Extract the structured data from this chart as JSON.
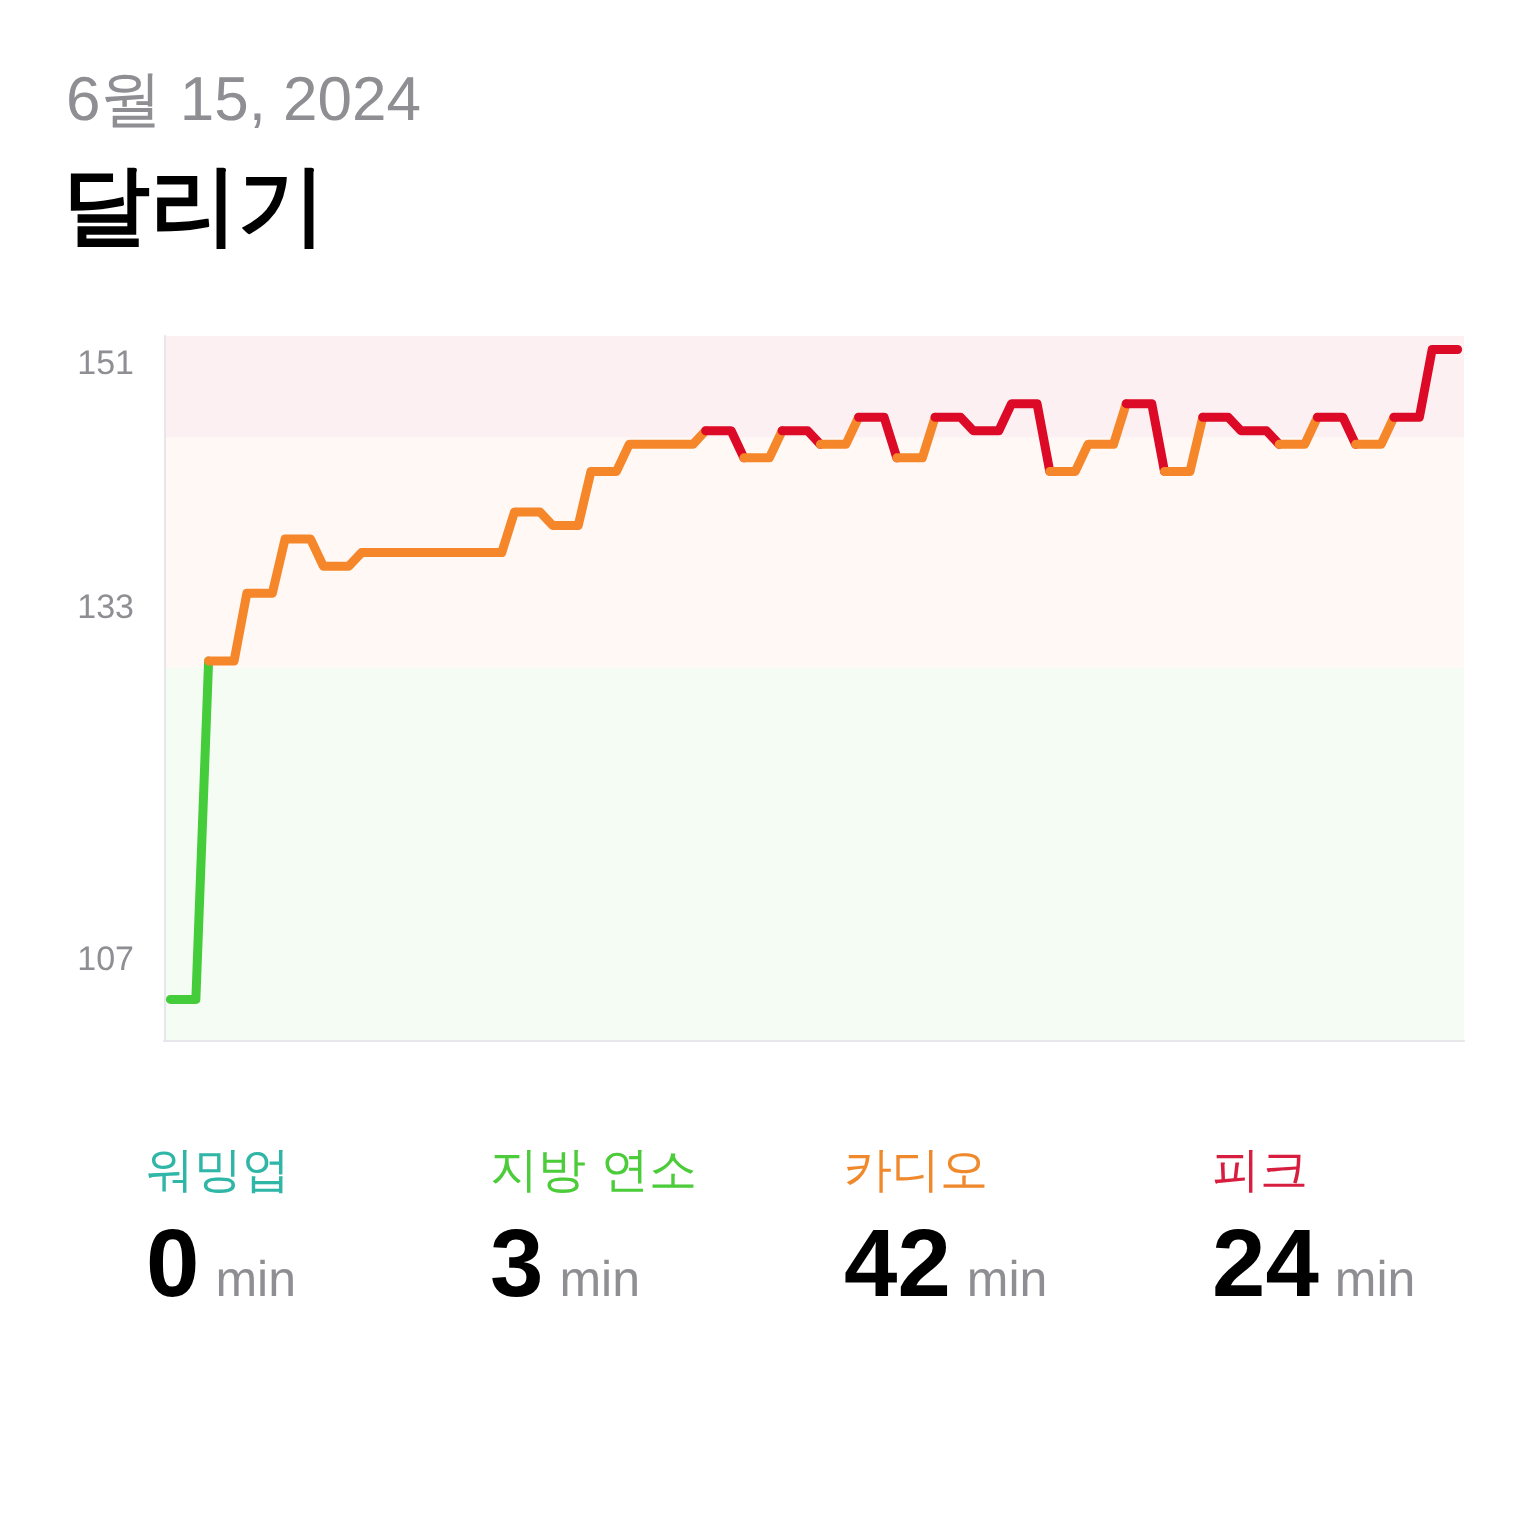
{
  "chart_data": [
    {
      "type": "line",
      "title": "달리기",
      "subtitle": "6월 15, 2024",
      "categories": [
        null,
        null,
        null,
        null,
        null,
        null,
        null,
        null,
        null,
        null,
        null,
        null,
        null,
        null,
        null,
        null,
        null,
        null,
        null,
        null,
        null,
        null,
        null,
        null,
        null,
        null,
        null,
        null,
        null,
        null,
        null,
        null,
        null,
        null,
        null,
        null,
        null,
        null,
        null,
        null,
        null,
        null,
        null,
        null,
        null,
        null,
        null,
        null,
        null,
        null,
        null,
        null,
        null,
        null,
        null,
        null,
        null,
        null,
        null,
        null,
        null,
        null,
        null,
        null,
        null,
        null,
        null,
        null,
        null,
        null,
        null,
        null,
        null,
        null,
        null,
        null,
        null,
        null,
        null,
        null,
        null,
        null,
        null,
        null,
        null,
        null,
        null,
        null,
        null,
        null,
        null,
        null,
        null,
        null,
        null,
        null,
        null,
        null,
        null,
        null,
        null,
        null
      ],
      "series": [
        {
          "color": "#45cc3a",
          "values": [
            104,
            104,
            104,
            129,
            null,
            null,
            null,
            null,
            null,
            null,
            null,
            null,
            null,
            null,
            null,
            null,
            null,
            null,
            null,
            null,
            null,
            null,
            null,
            null,
            null,
            null,
            null,
            null,
            null,
            null,
            null,
            null,
            null,
            null,
            null,
            null,
            null,
            null,
            null,
            null,
            null,
            null,
            null,
            null,
            null,
            null,
            null,
            null,
            null,
            null,
            null,
            null,
            null,
            null,
            null,
            null,
            null,
            null,
            null,
            null,
            null,
            null,
            null,
            null,
            null,
            null,
            null,
            null,
            null,
            null,
            null,
            null,
            null,
            null,
            null,
            null,
            null,
            null,
            null,
            null,
            null,
            null,
            null,
            null,
            null,
            null,
            null,
            null,
            null,
            null,
            null,
            null,
            null,
            null,
            null,
            null,
            null,
            null,
            null,
            null,
            null,
            null
          ]
        },
        {
          "color": "#f5862a",
          "values": [
            null,
            null,
            null,
            129,
            129,
            129,
            134,
            134,
            134,
            138,
            138,
            138,
            136,
            136,
            136,
            137,
            137,
            137,
            137,
            137,
            137,
            137,
            137,
            137,
            137,
            137,
            137,
            140,
            140,
            140,
            139,
            139,
            139,
            143,
            143,
            143,
            145,
            145,
            145,
            145,
            145,
            145,
            146,
            null,
            null,
            null,
            null,
            null,
            null,
            null,
            null,
            null,
            null,
            null,
            null,
            null,
            null,
            null,
            null,
            null,
            null,
            null,
            null,
            null,
            null,
            null,
            null,
            null,
            null,
            null,
            null,
            null,
            null,
            null,
            null,
            null,
            null,
            null,
            null,
            null,
            null,
            null,
            null,
            null,
            null,
            null,
            null,
            null,
            null,
            null,
            null,
            null,
            null,
            null,
            null,
            null,
            null,
            null,
            null,
            null,
            null,
            null
          ]
        },
        {
          "color": "#dc0a26",
          "values": [
            null,
            null,
            null,
            null,
            null,
            null,
            null,
            null,
            null,
            null,
            null,
            null,
            null,
            null,
            null,
            null,
            null,
            null,
            null,
            null,
            null,
            null,
            null,
            null,
            null,
            null,
            null,
            null,
            null,
            null,
            null,
            null,
            null,
            null,
            null,
            null,
            null,
            null,
            null,
            null,
            null,
            null,
            146,
            146,
            146,
            144,
            null,
            null,
            null,
            null,
            null,
            null,
            null,
            null,
            null,
            null,
            null,
            null,
            null,
            null,
            null,
            null,
            null,
            null,
            null,
            null,
            null,
            null,
            null,
            null,
            null,
            null,
            null,
            null,
            null,
            null,
            null,
            null,
            null,
            null,
            null,
            null,
            null,
            null,
            null,
            null,
            null,
            null,
            null,
            null,
            null,
            null,
            null,
            null,
            null,
            null,
            null,
            null,
            null,
            null,
            null,
            null
          ]
        },
        {
          "color": "#f5862a",
          "values": [
            null,
            null,
            null,
            null,
            null,
            null,
            null,
            null,
            null,
            null,
            null,
            null,
            null,
            null,
            null,
            null,
            null,
            null,
            null,
            null,
            null,
            null,
            null,
            null,
            null,
            null,
            null,
            null,
            null,
            null,
            null,
            null,
            null,
            null,
            null,
            null,
            null,
            null,
            null,
            null,
            null,
            null,
            null,
            null,
            null,
            144,
            144,
            144,
            146,
            null,
            null,
            null,
            null,
            null,
            null,
            null,
            null,
            null,
            null,
            null,
            null,
            null,
            null,
            null,
            null,
            null,
            null,
            null,
            null,
            null,
            null,
            null,
            null,
            null,
            null,
            null,
            null,
            null,
            null,
            null,
            null,
            null,
            null,
            null,
            null,
            null,
            null,
            null,
            null,
            null,
            null,
            null,
            null,
            null,
            null,
            null,
            null,
            null,
            null,
            null,
            null,
            null
          ]
        },
        {
          "color": "#dc0a26",
          "values": [
            null,
            null,
            null,
            null,
            null,
            null,
            null,
            null,
            null,
            null,
            null,
            null,
            null,
            null,
            null,
            null,
            null,
            null,
            null,
            null,
            null,
            null,
            null,
            null,
            null,
            null,
            null,
            null,
            null,
            null,
            null,
            null,
            null,
            null,
            null,
            null,
            null,
            null,
            null,
            null,
            null,
            null,
            null,
            null,
            null,
            null,
            null,
            null,
            146,
            146,
            146,
            145,
            null,
            null,
            null,
            null,
            null,
            null,
            null,
            null,
            null,
            null,
            null,
            null,
            null,
            null,
            null,
            null,
            null,
            null,
            null,
            null,
            null,
            null,
            null,
            null,
            null,
            null,
            null,
            null,
            null,
            null,
            null,
            null,
            null,
            null,
            null,
            null,
            null,
            null,
            null,
            null,
            null,
            null,
            null,
            null,
            null,
            null,
            null,
            null,
            null,
            null
          ]
        },
        {
          "color": "#f5862a",
          "values": [
            null,
            null,
            null,
            null,
            null,
            null,
            null,
            null,
            null,
            null,
            null,
            null,
            null,
            null,
            null,
            null,
            null,
            null,
            null,
            null,
            null,
            null,
            null,
            null,
            null,
            null,
            null,
            null,
            null,
            null,
            null,
            null,
            null,
            null,
            null,
            null,
            null,
            null,
            null,
            null,
            null,
            null,
            null,
            null,
            null,
            null,
            null,
            null,
            null,
            null,
            null,
            145,
            145,
            145,
            147,
            null,
            null,
            null,
            null,
            null,
            null,
            null,
            null,
            null,
            null,
            null,
            null,
            null,
            null,
            null,
            null,
            null,
            null,
            null,
            null,
            null,
            null,
            null,
            null,
            null,
            null,
            null,
            null,
            null,
            null,
            null,
            null,
            null,
            null,
            null,
            null,
            null,
            null,
            null,
            null,
            null,
            null,
            null,
            null,
            null,
            null,
            null
          ]
        },
        {
          "color": "#dc0a26",
          "values": [
            null,
            null,
            null,
            null,
            null,
            null,
            null,
            null,
            null,
            null,
            null,
            null,
            null,
            null,
            null,
            null,
            null,
            null,
            null,
            null,
            null,
            null,
            null,
            null,
            null,
            null,
            null,
            null,
            null,
            null,
            null,
            null,
            null,
            null,
            null,
            null,
            null,
            null,
            null,
            null,
            null,
            null,
            null,
            null,
            null,
            null,
            null,
            null,
            null,
            null,
            null,
            null,
            null,
            null,
            147,
            147,
            147,
            144,
            null,
            null,
            null,
            null,
            null,
            null,
            null,
            null,
            null,
            null,
            null,
            null,
            null,
            null,
            null,
            null,
            null,
            null,
            null,
            null,
            null,
            null,
            null,
            null,
            null,
            null,
            null,
            null,
            null,
            null,
            null,
            null,
            null,
            null,
            null,
            null,
            null,
            null,
            null,
            null,
            null,
            null,
            null,
            null
          ]
        },
        {
          "color": "#f5862a",
          "values": [
            null,
            null,
            null,
            null,
            null,
            null,
            null,
            null,
            null,
            null,
            null,
            null,
            null,
            null,
            null,
            null,
            null,
            null,
            null,
            null,
            null,
            null,
            null,
            null,
            null,
            null,
            null,
            null,
            null,
            null,
            null,
            null,
            null,
            null,
            null,
            null,
            null,
            null,
            null,
            null,
            null,
            null,
            null,
            null,
            null,
            null,
            null,
            null,
            null,
            null,
            null,
            null,
            null,
            null,
            null,
            null,
            null,
            144,
            144,
            144,
            147,
            null,
            null,
            null,
            null,
            null,
            null,
            null,
            null,
            null,
            null,
            null,
            null,
            null,
            null,
            null,
            null,
            null,
            null,
            null,
            null,
            null,
            null,
            null,
            null,
            null,
            null,
            null,
            null,
            null,
            null,
            null,
            null,
            null,
            null,
            null,
            null,
            null,
            null,
            null,
            null,
            null
          ]
        },
        {
          "color": "#dc0a26",
          "values": [
            null,
            null,
            null,
            null,
            null,
            null,
            null,
            null,
            null,
            null,
            null,
            null,
            null,
            null,
            null,
            null,
            null,
            null,
            null,
            null,
            null,
            null,
            null,
            null,
            null,
            null,
            null,
            null,
            null,
            null,
            null,
            null,
            null,
            null,
            null,
            null,
            null,
            null,
            null,
            null,
            null,
            null,
            null,
            null,
            null,
            null,
            null,
            null,
            null,
            null,
            null,
            null,
            null,
            null,
            null,
            null,
            null,
            null,
            null,
            null,
            147,
            147,
            147,
            146,
            146,
            146,
            148,
            148,
            148,
            143,
            null,
            null,
            null,
            null,
            null,
            null,
            null,
            null,
            null,
            null,
            null,
            null,
            null,
            null,
            null,
            null,
            null,
            null,
            null,
            null,
            null,
            null,
            null,
            null,
            null,
            null,
            null,
            null,
            null,
            null,
            null,
            null
          ]
        },
        {
          "color": "#f5862a",
          "values": [
            null,
            null,
            null,
            null,
            null,
            null,
            null,
            null,
            null,
            null,
            null,
            null,
            null,
            null,
            null,
            null,
            null,
            null,
            null,
            null,
            null,
            null,
            null,
            null,
            null,
            null,
            null,
            null,
            null,
            null,
            null,
            null,
            null,
            null,
            null,
            null,
            null,
            null,
            null,
            null,
            null,
            null,
            null,
            null,
            null,
            null,
            null,
            null,
            null,
            null,
            null,
            null,
            null,
            null,
            null,
            null,
            null,
            null,
            null,
            null,
            null,
            null,
            null,
            null,
            null,
            null,
            null,
            null,
            null,
            143,
            143,
            143,
            145,
            145,
            145,
            148,
            null,
            null,
            null,
            null,
            null,
            null,
            null,
            null,
            null,
            null,
            null,
            null,
            null,
            null,
            null,
            null,
            null,
            null,
            null,
            null,
            null,
            null,
            null,
            null,
            null,
            null
          ]
        },
        {
          "color": "#dc0a26",
          "values": [
            null,
            null,
            null,
            null,
            null,
            null,
            null,
            null,
            null,
            null,
            null,
            null,
            null,
            null,
            null,
            null,
            null,
            null,
            null,
            null,
            null,
            null,
            null,
            null,
            null,
            null,
            null,
            null,
            null,
            null,
            null,
            null,
            null,
            null,
            null,
            null,
            null,
            null,
            null,
            null,
            null,
            null,
            null,
            null,
            null,
            null,
            null,
            null,
            null,
            null,
            null,
            null,
            null,
            null,
            null,
            null,
            null,
            null,
            null,
            null,
            null,
            null,
            null,
            null,
            null,
            null,
            null,
            null,
            null,
            null,
            null,
            null,
            null,
            null,
            null,
            148,
            148,
            148,
            143,
            null,
            null,
            null,
            null,
            null,
            null,
            null,
            null,
            null,
            null,
            null,
            null,
            null,
            null,
            null,
            null,
            null,
            null,
            null,
            null,
            null,
            null,
            null
          ]
        },
        {
          "color": "#f5862a",
          "values": [
            null,
            null,
            null,
            null,
            null,
            null,
            null,
            null,
            null,
            null,
            null,
            null,
            null,
            null,
            null,
            null,
            null,
            null,
            null,
            null,
            null,
            null,
            null,
            null,
            null,
            null,
            null,
            null,
            null,
            null,
            null,
            null,
            null,
            null,
            null,
            null,
            null,
            null,
            null,
            null,
            null,
            null,
            null,
            null,
            null,
            null,
            null,
            null,
            null,
            null,
            null,
            null,
            null,
            null,
            null,
            null,
            null,
            null,
            null,
            null,
            null,
            null,
            null,
            null,
            null,
            null,
            null,
            null,
            null,
            null,
            null,
            null,
            null,
            null,
            null,
            null,
            null,
            null,
            143,
            143,
            143,
            147,
            null,
            null,
            null,
            null,
            null,
            null,
            null,
            null,
            null,
            null,
            null,
            null,
            null,
            null,
            null,
            null,
            null,
            null,
            null,
            null
          ]
        },
        {
          "color": "#dc0a26",
          "values": [
            null,
            null,
            null,
            null,
            null,
            null,
            null,
            null,
            null,
            null,
            null,
            null,
            null,
            null,
            null,
            null,
            null,
            null,
            null,
            null,
            null,
            null,
            null,
            null,
            null,
            null,
            null,
            null,
            null,
            null,
            null,
            null,
            null,
            null,
            null,
            null,
            null,
            null,
            null,
            null,
            null,
            null,
            null,
            null,
            null,
            null,
            null,
            null,
            null,
            null,
            null,
            null,
            null,
            null,
            null,
            null,
            null,
            null,
            null,
            null,
            null,
            null,
            null,
            null,
            null,
            null,
            null,
            null,
            null,
            null,
            null,
            null,
            null,
            null,
            null,
            null,
            null,
            null,
            null,
            null,
            null,
            147,
            147,
            147,
            146,
            146,
            146,
            145,
            null,
            null,
            null,
            null,
            null,
            null,
            null,
            null,
            null,
            null,
            null,
            null,
            null,
            null
          ]
        },
        {
          "color": "#f5862a",
          "values": [
            null,
            null,
            null,
            null,
            null,
            null,
            null,
            null,
            null,
            null,
            null,
            null,
            null,
            null,
            null,
            null,
            null,
            null,
            null,
            null,
            null,
            null,
            null,
            null,
            null,
            null,
            null,
            null,
            null,
            null,
            null,
            null,
            null,
            null,
            null,
            null,
            null,
            null,
            null,
            null,
            null,
            null,
            null,
            null,
            null,
            null,
            null,
            null,
            null,
            null,
            null,
            null,
            null,
            null,
            null,
            null,
            null,
            null,
            null,
            null,
            null,
            null,
            null,
            null,
            null,
            null,
            null,
            null,
            null,
            null,
            null,
            null,
            null,
            null,
            null,
            null,
            null,
            null,
            null,
            null,
            null,
            null,
            null,
            null,
            null,
            null,
            null,
            145,
            145,
            145,
            147,
            null,
            null,
            null,
            null,
            null,
            null,
            null,
            null,
            null,
            null,
            null
          ]
        },
        {
          "color": "#dc0a26",
          "values": [
            null,
            null,
            null,
            null,
            null,
            null,
            null,
            null,
            null,
            null,
            null,
            null,
            null,
            null,
            null,
            null,
            null,
            null,
            null,
            null,
            null,
            null,
            null,
            null,
            null,
            null,
            null,
            null,
            null,
            null,
            null,
            null,
            null,
            null,
            null,
            null,
            null,
            null,
            null,
            null,
            null,
            null,
            null,
            null,
            null,
            null,
            null,
            null,
            null,
            null,
            null,
            null,
            null,
            null,
            null,
            null,
            null,
            null,
            null,
            null,
            null,
            null,
            null,
            null,
            null,
            null,
            null,
            null,
            null,
            null,
            null,
            null,
            null,
            null,
            null,
            null,
            null,
            null,
            null,
            null,
            null,
            null,
            null,
            null,
            null,
            null,
            null,
            null,
            null,
            null,
            147,
            147,
            147,
            145,
            null,
            null,
            null,
            null,
            null,
            null,
            null,
            null
          ]
        },
        {
          "color": "#f5862a",
          "values": [
            null,
            null,
            null,
            null,
            null,
            null,
            null,
            null,
            null,
            null,
            null,
            null,
            null,
            null,
            null,
            null,
            null,
            null,
            null,
            null,
            null,
            null,
            null,
            null,
            null,
            null,
            null,
            null,
            null,
            null,
            null,
            null,
            null,
            null,
            null,
            null,
            null,
            null,
            null,
            null,
            null,
            null,
            null,
            null,
            null,
            null,
            null,
            null,
            null,
            null,
            null,
            null,
            null,
            null,
            null,
            null,
            null,
            null,
            null,
            null,
            null,
            null,
            null,
            null,
            null,
            null,
            null,
            null,
            null,
            null,
            null,
            null,
            null,
            null,
            null,
            null,
            null,
            null,
            null,
            null,
            null,
            null,
            null,
            null,
            null,
            null,
            null,
            null,
            null,
            null,
            null,
            null,
            null,
            145,
            145,
            145,
            147,
            null,
            null,
            null,
            null,
            null
          ]
        },
        {
          "color": "#dc0a26",
          "values": [
            null,
            null,
            null,
            null,
            null,
            null,
            null,
            null,
            null,
            null,
            null,
            null,
            null,
            null,
            null,
            null,
            null,
            null,
            null,
            null,
            null,
            null,
            null,
            null,
            null,
            null,
            null,
            null,
            null,
            null,
            null,
            null,
            null,
            null,
            null,
            null,
            null,
            null,
            null,
            null,
            null,
            null,
            null,
            null,
            null,
            null,
            null,
            null,
            null,
            null,
            null,
            null,
            null,
            null,
            null,
            null,
            null,
            null,
            null,
            null,
            null,
            null,
            null,
            null,
            null,
            null,
            null,
            null,
            null,
            null,
            null,
            null,
            null,
            null,
            null,
            null,
            null,
            null,
            null,
            null,
            null,
            null,
            null,
            null,
            null,
            null,
            null,
            null,
            null,
            null,
            null,
            null,
            null,
            null,
            null,
            null,
            147,
            147,
            147,
            152,
            152,
            152
          ]
        }
      ],
      "ylim": [
        101,
        153
      ],
      "yticks": [
        107,
        133,
        151
      ],
      "tick_labels": "y",
      "bands": [
        {
          "axis": "y",
          "from": 101,
          "to": 128.5,
          "color": "#f4fcf3"
        },
        {
          "axis": "y",
          "from": 128.5,
          "to": 145.5,
          "color": "#fff8f4"
        },
        {
          "axis": "y",
          "from": 145.5,
          "to": 153,
          "color": "#fdf0f3"
        }
      ]
    },
    {
      "type": "other",
      "categories": [
        "워밍업",
        "지방 연소",
        "카디오",
        "피크"
      ],
      "values": [
        0,
        3,
        42,
        24
      ],
      "colors": [
        "#2fb6a6",
        "#4ccc3a",
        "#f0882c",
        "#d81e3f"
      ],
      "ylabel": "min",
      "data_labels": true
    }
  ]
}
